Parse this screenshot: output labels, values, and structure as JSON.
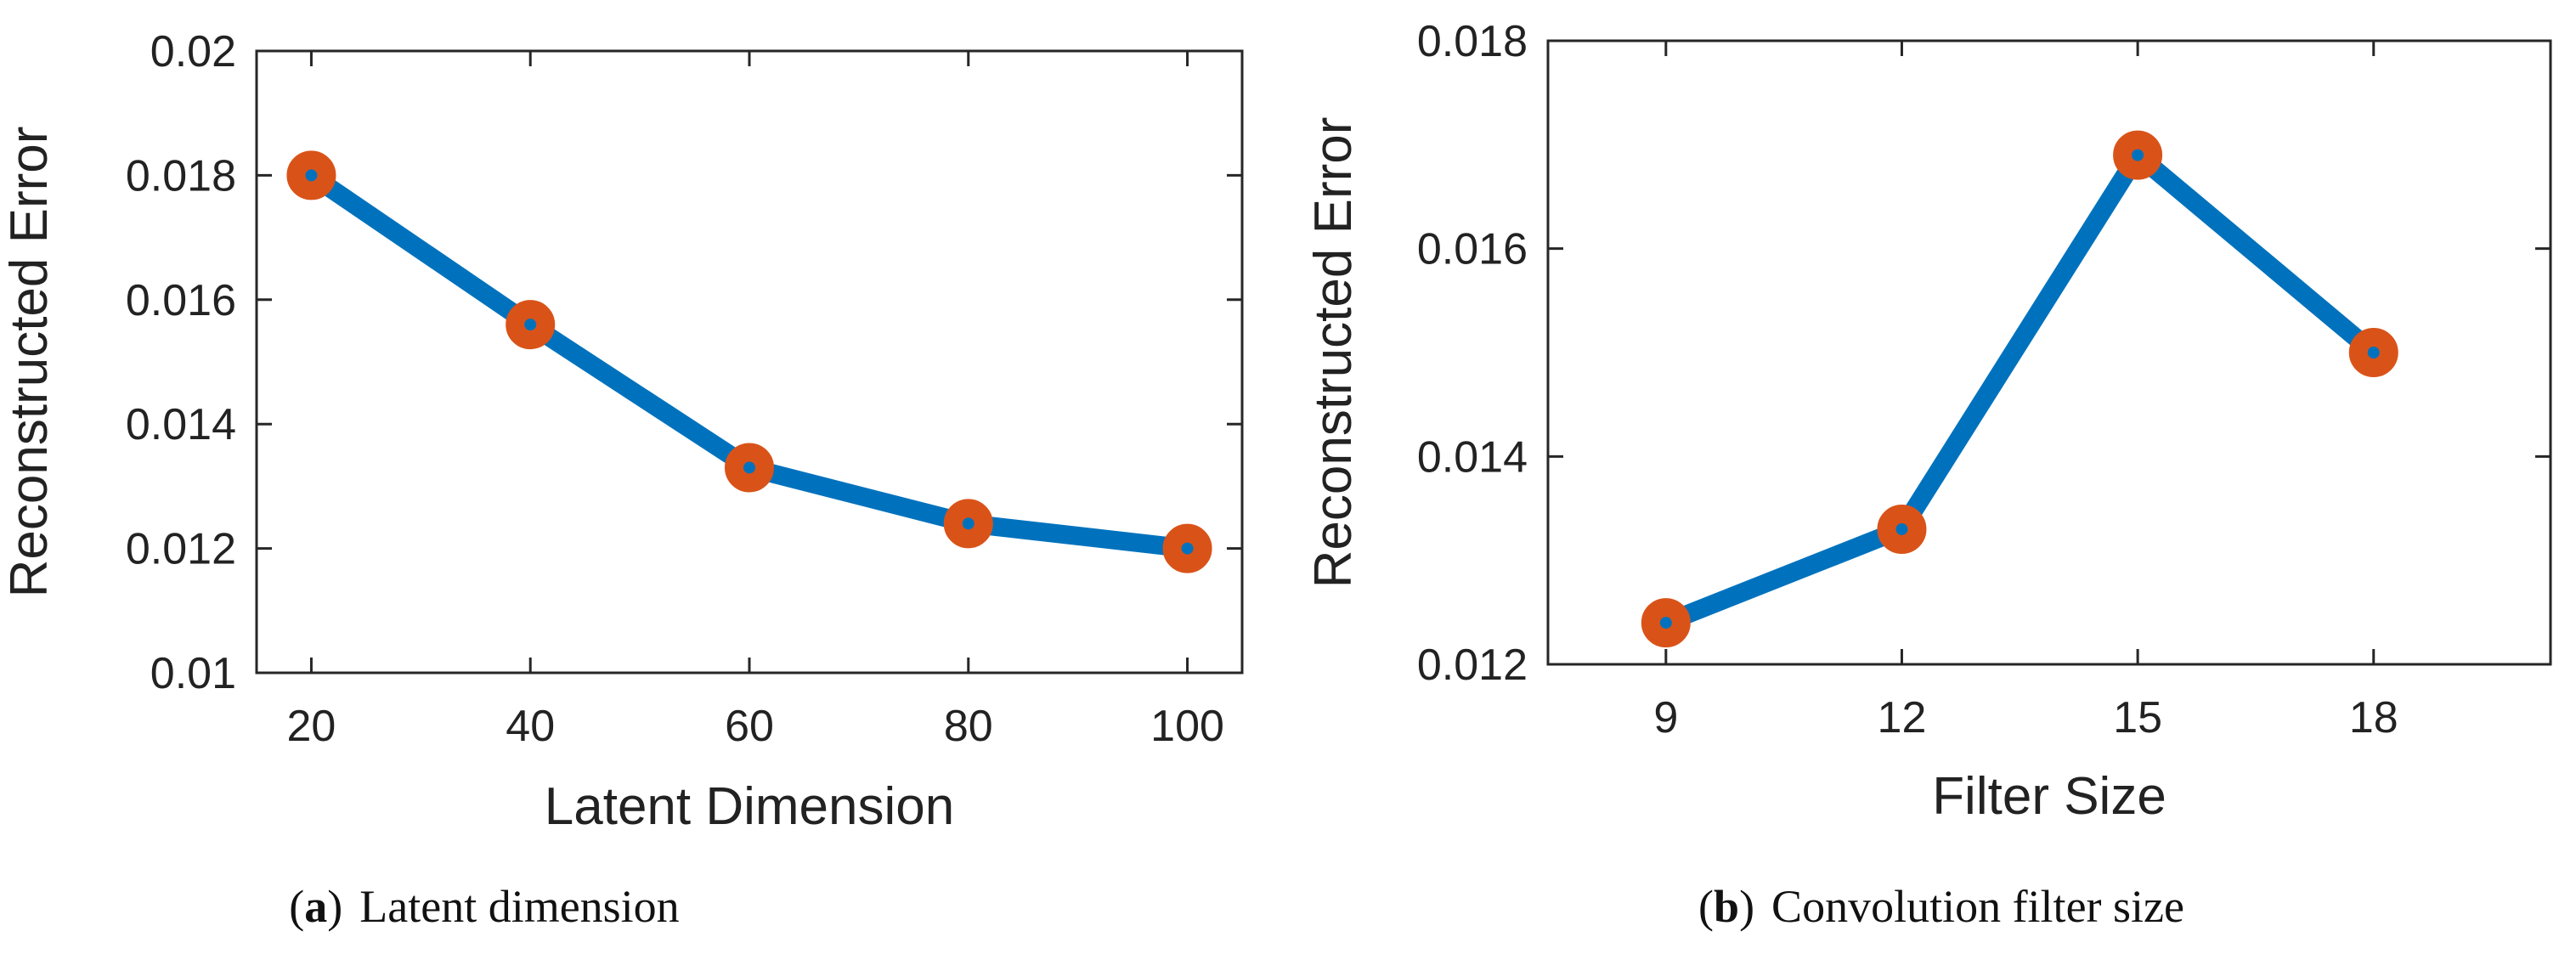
{
  "colors": {
    "line": "#0072BD",
    "marker": "#D95319",
    "axis": "#262626"
  },
  "chart_data": [
    {
      "type": "line",
      "title": "",
      "xlabel": "Latent Dimension",
      "ylabel": "Reconstructed Error",
      "x": [
        20,
        40,
        60,
        80,
        100
      ],
      "values": [
        0.018,
        0.0156,
        0.0133,
        0.0124,
        0.012
      ],
      "xlim": [
        15,
        105
      ],
      "ylim": [
        0.01,
        0.02
      ],
      "xticks": [
        20,
        40,
        60,
        80,
        100
      ],
      "xtick_labels": [
        "20",
        "40",
        "60",
        "80",
        "100"
      ],
      "yticks": [
        0.01,
        0.012,
        0.014,
        0.016,
        0.018,
        0.02
      ],
      "ytick_labels": [
        "0.01",
        "0.012",
        "0.014",
        "0.016",
        "0.018",
        "0.02"
      ],
      "grid": false,
      "caption_label": "a",
      "caption_text": "Latent dimension"
    },
    {
      "type": "line",
      "title": "",
      "xlabel": "Filter Size",
      "ylabel": "Reconstructed Error",
      "x": [
        9,
        12,
        15,
        18
      ],
      "values": [
        0.0124,
        0.0133,
        0.0169,
        0.015
      ],
      "xlim": [
        7.5,
        20.25
      ],
      "ylim": [
        0.012,
        0.018
      ],
      "xticks": [
        9,
        12,
        15,
        18
      ],
      "xtick_labels": [
        "9",
        "12",
        "15",
        "18"
      ],
      "yticks": [
        0.012,
        0.014,
        0.016,
        0.018
      ],
      "ytick_labels": [
        "0.012",
        "0.014",
        "0.016",
        "0.018"
      ],
      "grid": false,
      "caption_label": "b",
      "caption_text": "Convolution filter size"
    }
  ]
}
